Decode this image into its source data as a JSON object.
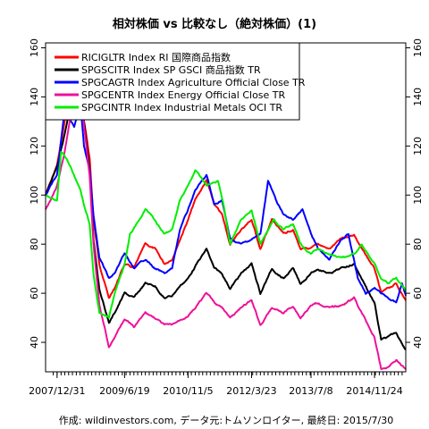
{
  "chart_data": {
    "type": "line",
    "title": "相対株価 vs 比較なし（絶対株価）(1)",
    "caption": "作成: wildinvestors.com, データ元:トムソンロイター, 最終日: 2015/7/30",
    "x_tick_labels": [
      "2007/12/31",
      "2009/6/19",
      "2010/11/5",
      "2012/3/23",
      "2013/7/8",
      "2014/11/24"
    ],
    "x_tick_dates": [
      "2007-12-31",
      "2009-06-19",
      "2010-11-05",
      "2012-03-23",
      "2013-07-08",
      "2014-11-24"
    ],
    "x_range": [
      "2007-10-01",
      "2015-07-30"
    ],
    "y_ticks": [
      40,
      60,
      80,
      100,
      120,
      140,
      160
    ],
    "ylim": [
      28,
      162
    ],
    "legend_position": "top-left",
    "grid": false,
    "series": [
      {
        "name": "RICIGLTR Index RI 国際商品指数",
        "color": "#ff0000",
        "points": [
          [
            "2007-10-01",
            100
          ],
          [
            "2007-12-31",
            112
          ],
          [
            "2008-03-01",
            130
          ],
          [
            "2008-05-15",
            145
          ],
          [
            "2008-07-03",
            149
          ],
          [
            "2008-08-01",
            130
          ],
          [
            "2008-09-15",
            115
          ],
          [
            "2008-10-15",
            90
          ],
          [
            "2008-12-01",
            72
          ],
          [
            "2009-02-15",
            58
          ],
          [
            "2009-04-01",
            62
          ],
          [
            "2009-06-19",
            72
          ],
          [
            "2009-09-01",
            70
          ],
          [
            "2009-12-01",
            80
          ],
          [
            "2010-02-15",
            78
          ],
          [
            "2010-05-01",
            72
          ],
          [
            "2010-07-01",
            74
          ],
          [
            "2010-09-01",
            82
          ],
          [
            "2010-11-05",
            90
          ],
          [
            "2011-01-01",
            98
          ],
          [
            "2011-04-01",
            106
          ],
          [
            "2011-06-01",
            96
          ],
          [
            "2011-08-01",
            92
          ],
          [
            "2011-10-05",
            80
          ],
          [
            "2012-01-01",
            86
          ],
          [
            "2012-03-23",
            90
          ],
          [
            "2012-06-01",
            78
          ],
          [
            "2012-09-01",
            90
          ],
          [
            "2012-12-01",
            84
          ],
          [
            "2013-02-15",
            86
          ],
          [
            "2013-04-15",
            78
          ],
          [
            "2013-07-08",
            78
          ],
          [
            "2013-09-01",
            80
          ],
          [
            "2013-12-01",
            78
          ],
          [
            "2014-03-01",
            82
          ],
          [
            "2014-06-15",
            84
          ],
          [
            "2014-08-15",
            78
          ],
          [
            "2014-11-24",
            70
          ],
          [
            "2015-01-15",
            60
          ],
          [
            "2015-03-15",
            62
          ],
          [
            "2015-05-15",
            64
          ],
          [
            "2015-07-30",
            57
          ]
        ]
      },
      {
        "name": "SPGSCITR Index SP GSCI 商品指数 TR",
        "color": "#000000",
        "points": [
          [
            "2007-10-01",
            100
          ],
          [
            "2007-12-31",
            112
          ],
          [
            "2008-03-01",
            125
          ],
          [
            "2008-05-15",
            143
          ],
          [
            "2008-07-03",
            151
          ],
          [
            "2008-08-01",
            130
          ],
          [
            "2008-09-15",
            110
          ],
          [
            "2008-10-15",
            82
          ],
          [
            "2008-12-01",
            62
          ],
          [
            "2009-02-15",
            48
          ],
          [
            "2009-04-01",
            52
          ],
          [
            "2009-06-19",
            60
          ],
          [
            "2009-09-01",
            58
          ],
          [
            "2009-12-01",
            64
          ],
          [
            "2010-02-15",
            63
          ],
          [
            "2010-05-01",
            58
          ],
          [
            "2010-07-01",
            59
          ],
          [
            "2010-09-01",
            63
          ],
          [
            "2010-11-05",
            66
          ],
          [
            "2011-01-01",
            71
          ],
          [
            "2011-04-01",
            78
          ],
          [
            "2011-06-01",
            70
          ],
          [
            "2011-08-01",
            68
          ],
          [
            "2011-10-05",
            62
          ],
          [
            "2012-01-01",
            68
          ],
          [
            "2012-03-23",
            72
          ],
          [
            "2012-06-01",
            60
          ],
          [
            "2012-09-01",
            70
          ],
          [
            "2012-12-01",
            66
          ],
          [
            "2013-02-15",
            70
          ],
          [
            "2013-04-15",
            64
          ],
          [
            "2013-07-08",
            68
          ],
          [
            "2013-09-01",
            70
          ],
          [
            "2013-12-01",
            68
          ],
          [
            "2014-03-01",
            70
          ],
          [
            "2014-06-15",
            72
          ],
          [
            "2014-08-15",
            66
          ],
          [
            "2014-11-24",
            56
          ],
          [
            "2015-01-15",
            41
          ],
          [
            "2015-03-15",
            42
          ],
          [
            "2015-05-15",
            44
          ],
          [
            "2015-07-30",
            37
          ]
        ]
      },
      {
        "name": "SPGCAGTR Index Agriculture Official Close TR",
        "color": "#0000ff",
        "points": [
          [
            "2007-10-01",
            100
          ],
          [
            "2007-12-31",
            108
          ],
          [
            "2008-03-01",
            135
          ],
          [
            "2008-05-15",
            128
          ],
          [
            "2008-07-03",
            138
          ],
          [
            "2008-08-01",
            120
          ],
          [
            "2008-09-15",
            110
          ],
          [
            "2008-10-15",
            92
          ],
          [
            "2008-12-01",
            75
          ],
          [
            "2009-02-15",
            66
          ],
          [
            "2009-04-01",
            68
          ],
          [
            "2009-06-19",
            76
          ],
          [
            "2009-09-01",
            70
          ],
          [
            "2009-12-01",
            74
          ],
          [
            "2010-02-15",
            70
          ],
          [
            "2010-05-01",
            68
          ],
          [
            "2010-07-01",
            70
          ],
          [
            "2010-09-01",
            86
          ],
          [
            "2010-11-05",
            94
          ],
          [
            "2011-01-01",
            102
          ],
          [
            "2011-04-01",
            108
          ],
          [
            "2011-06-01",
            96
          ],
          [
            "2011-08-01",
            98
          ],
          [
            "2011-10-05",
            82
          ],
          [
            "2012-01-01",
            80
          ],
          [
            "2012-03-23",
            82
          ],
          [
            "2012-06-01",
            84
          ],
          [
            "2012-08-01",
            106
          ],
          [
            "2012-10-01",
            98
          ],
          [
            "2012-12-01",
            92
          ],
          [
            "2013-02-15",
            90
          ],
          [
            "2013-05-01",
            94
          ],
          [
            "2013-07-08",
            84
          ],
          [
            "2013-09-01",
            78
          ],
          [
            "2013-12-01",
            74
          ],
          [
            "2014-03-01",
            82
          ],
          [
            "2014-05-01",
            84
          ],
          [
            "2014-07-15",
            66
          ],
          [
            "2014-09-15",
            60
          ],
          [
            "2014-11-24",
            62
          ],
          [
            "2015-01-15",
            60
          ],
          [
            "2015-03-15",
            58
          ],
          [
            "2015-05-15",
            56
          ],
          [
            "2015-06-30",
            64
          ],
          [
            "2015-07-30",
            59
          ]
        ]
      },
      {
        "name": "SPGCENTR Index Energy Official Close TR",
        "color": "#ee1199",
        "points": [
          [
            "2007-10-01",
            94
          ],
          [
            "2007-12-31",
            104
          ],
          [
            "2008-03-01",
            118
          ],
          [
            "2008-05-15",
            140
          ],
          [
            "2008-07-03",
            155
          ],
          [
            "2008-08-01",
            128
          ],
          [
            "2008-09-15",
            108
          ],
          [
            "2008-10-15",
            80
          ],
          [
            "2008-12-01",
            55
          ],
          [
            "2009-02-15",
            38
          ],
          [
            "2009-04-01",
            42
          ],
          [
            "2009-06-19",
            50
          ],
          [
            "2009-09-01",
            46
          ],
          [
            "2009-12-01",
            52
          ],
          [
            "2010-02-15",
            50
          ],
          [
            "2010-05-01",
            47
          ],
          [
            "2010-07-01",
            47
          ],
          [
            "2010-09-01",
            49
          ],
          [
            "2010-11-05",
            51
          ],
          [
            "2011-01-01",
            54
          ],
          [
            "2011-04-01",
            60
          ],
          [
            "2011-06-01",
            56
          ],
          [
            "2011-08-01",
            54
          ],
          [
            "2011-10-05",
            50
          ],
          [
            "2012-01-01",
            54
          ],
          [
            "2012-03-23",
            57
          ],
          [
            "2012-06-01",
            47
          ],
          [
            "2012-09-01",
            54
          ],
          [
            "2012-12-01",
            52
          ],
          [
            "2013-02-15",
            55
          ],
          [
            "2013-04-15",
            50
          ],
          [
            "2013-07-08",
            55
          ],
          [
            "2013-09-01",
            56
          ],
          [
            "2013-12-01",
            54
          ],
          [
            "2014-03-01",
            55
          ],
          [
            "2014-06-15",
            58
          ],
          [
            "2014-08-15",
            52
          ],
          [
            "2014-11-24",
            42
          ],
          [
            "2015-01-15",
            29
          ],
          [
            "2015-03-15",
            30
          ],
          [
            "2015-05-15",
            33
          ],
          [
            "2015-07-30",
            29
          ]
        ]
      },
      {
        "name": "SPGCINTR Index Industrial Metals OCI TR",
        "color": "#00ee00",
        "points": [
          [
            "2007-10-01",
            100
          ],
          [
            "2007-12-31",
            98
          ],
          [
            "2008-02-01",
            118
          ],
          [
            "2008-03-15",
            115
          ],
          [
            "2008-05-15",
            108
          ],
          [
            "2008-07-03",
            102
          ],
          [
            "2008-08-01",
            96
          ],
          [
            "2008-09-15",
            88
          ],
          [
            "2008-10-15",
            68
          ],
          [
            "2008-12-01",
            52
          ],
          [
            "2009-02-15",
            50
          ],
          [
            "2009-04-01",
            60
          ],
          [
            "2009-06-19",
            72
          ],
          [
            "2009-08-01",
            84
          ],
          [
            "2009-12-01",
            94
          ],
          [
            "2010-02-15",
            90
          ],
          [
            "2010-05-01",
            84
          ],
          [
            "2010-07-01",
            86
          ],
          [
            "2010-09-01",
            98
          ],
          [
            "2010-11-05",
            104
          ],
          [
            "2011-01-01",
            110
          ],
          [
            "2011-04-01",
            104
          ],
          [
            "2011-07-01",
            106
          ],
          [
            "2011-08-15",
            96
          ],
          [
            "2011-10-05",
            80
          ],
          [
            "2012-01-01",
            90
          ],
          [
            "2012-03-23",
            94
          ],
          [
            "2012-06-01",
            80
          ],
          [
            "2012-09-15",
            90
          ],
          [
            "2012-12-01",
            86
          ],
          [
            "2013-02-15",
            88
          ],
          [
            "2013-04-15",
            80
          ],
          [
            "2013-07-08",
            76
          ],
          [
            "2013-09-01",
            78
          ],
          [
            "2013-12-01",
            76
          ],
          [
            "2014-03-01",
            74
          ],
          [
            "2014-06-15",
            76
          ],
          [
            "2014-08-15",
            80
          ],
          [
            "2014-11-24",
            72
          ],
          [
            "2015-01-15",
            66
          ],
          [
            "2015-03-15",
            64
          ],
          [
            "2015-05-15",
            66
          ],
          [
            "2015-07-30",
            61
          ]
        ]
      }
    ]
  }
}
